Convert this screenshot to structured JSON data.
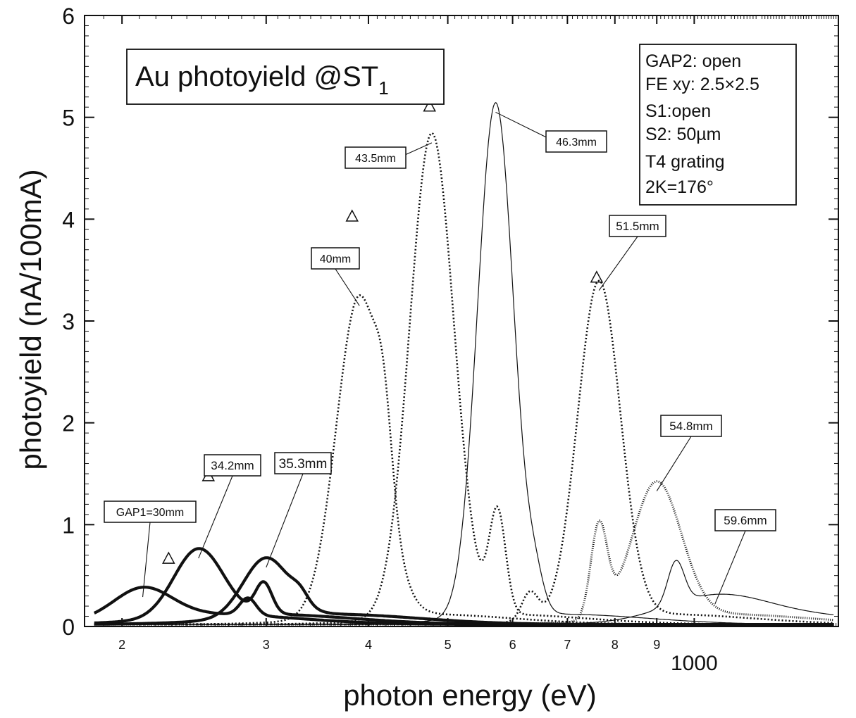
{
  "chart_data": {
    "type": "line",
    "title": "Au photoyield @ST",
    "title_subscript": "1",
    "xlabel": "photon energy (eV)",
    "ylabel": "photoyield (nA/100mA)",
    "x_scale": "log",
    "xlim": [
      180,
      1500
    ],
    "ylim": [
      0,
      6
    ],
    "x_tick_labels": [
      "2",
      "3",
      "4",
      "5",
      "6",
      "7",
      "8",
      "9",
      "1000"
    ],
    "x_tick_values": [
      200,
      300,
      400,
      500,
      600,
      700,
      800,
      900,
      1000
    ],
    "y_tick_labels": [
      "0",
      "1",
      "2",
      "3",
      "4",
      "5",
      "6"
    ],
    "y_tick_values": [
      0,
      1,
      2,
      3,
      4,
      5,
      6
    ],
    "legend_position": "top-right",
    "info_box_lines": [
      "GAP2: open",
      "FE xy: 2.5×2.5",
      "S1:open",
      "S2: 50µm",
      "T4 grating",
      "2K=176°"
    ],
    "series": [
      {
        "name": "GAP1=30mm",
        "peak_x": 212,
        "peak_y": 0.29,
        "width": 0.035,
        "second_peak_x": 285,
        "second_peak_y": 0.17,
        "style": "thick"
      },
      {
        "name": "34.2mm",
        "peak_x": 248,
        "peak_y": 0.67,
        "width": 0.03,
        "second_peak_x": 298,
        "second_peak_y": 0.3,
        "style": "thick"
      },
      {
        "name": "35.3mm",
        "peak_x": 300,
        "peak_y": 0.58,
        "width": 0.028,
        "second_peak_x": 330,
        "second_peak_y": 0.1,
        "style": "thick"
      },
      {
        "name": "40mm",
        "peak_x": 390,
        "peak_y": 3.15,
        "width": 0.028,
        "second_peak_x": 418,
        "second_peak_y": 0.68,
        "style": "dotted"
      },
      {
        "name": "43.5mm",
        "peak_x": 478,
        "peak_y": 4.75,
        "width": 0.027,
        "second_peak_x": 575,
        "second_peak_y": 1.0,
        "style": "dotted"
      },
      {
        "name": "46.3mm",
        "peak_x": 572,
        "peak_y": 5.05,
        "width": 0.022,
        "second_peak_x": 640,
        "second_peak_y": 0.25,
        "style": "thin"
      },
      {
        "name": "51.5mm",
        "peak_x": 765,
        "peak_y": 3.3,
        "width": 0.026,
        "second_peak_x": 630,
        "second_peak_y": 0.28,
        "style": "dotted"
      },
      {
        "name": "54.8mm",
        "peak_x": 900,
        "peak_y": 1.33,
        "width": 0.03,
        "second_peak_x": 765,
        "second_peak_y": 0.9,
        "style": "cross"
      },
      {
        "name": "59.6mm",
        "peak_x": 1060,
        "peak_y": 0.22,
        "width": 0.06,
        "second_peak_x": 950,
        "second_peak_y": 0.42,
        "style": "thin"
      }
    ],
    "triangle_markers": [
      {
        "x": 228,
        "y": 0.67
      },
      {
        "x": 255,
        "y": 1.48
      },
      {
        "x": 382,
        "y": 4.03
      },
      {
        "x": 475,
        "y": 5.11
      },
      {
        "x": 760,
        "y": 3.43
      }
    ]
  }
}
